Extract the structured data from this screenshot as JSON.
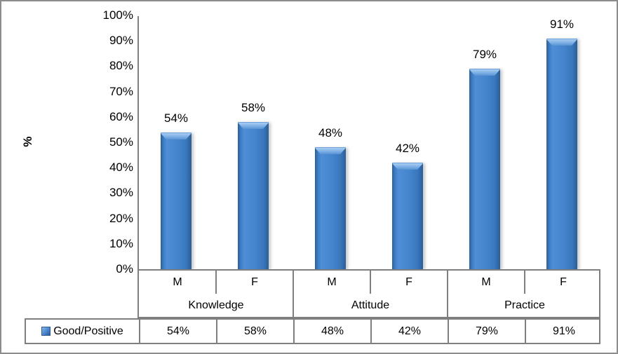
{
  "figure": {
    "background": "#FFFFFF",
    "frame_color": "#8C8C8C"
  },
  "colors": {
    "bar_face": "#4485CD",
    "bar_edge": "#2B5E97",
    "bar_highlight": "#A9CCF1",
    "table_border": "#7F7F7F",
    "axis_line": "#808080",
    "text": "#000000"
  },
  "chart_data": {
    "type": "bar",
    "title": "",
    "xlabel": "",
    "ylabel": "%",
    "ylim": [
      0,
      100
    ],
    "ytick_step": 10,
    "ytick_labels": [
      "0%",
      "10%",
      "20%",
      "30%",
      "40%",
      "50%",
      "60%",
      "70%",
      "80%",
      "90%",
      "100%"
    ],
    "grid": false,
    "legend_position": "bottom-table-left",
    "groups": [
      {
        "label": "Knowledge",
        "categories": [
          "M",
          "F"
        ]
      },
      {
        "label": "Attitude",
        "categories": [
          "M",
          "F"
        ]
      },
      {
        "label": "Practice",
        "categories": [
          "M",
          "F"
        ]
      }
    ],
    "x_categories": [
      "M",
      "F",
      "M",
      "F",
      "M",
      "F"
    ],
    "series": [
      {
        "name": "Good/Positive",
        "values": [
          54,
          58,
          48,
          42,
          79,
          91
        ],
        "data_labels": [
          "54%",
          "58%",
          "48%",
          "42%",
          "79%",
          "91%"
        ],
        "color": "#4485CD"
      }
    ],
    "data_table": {
      "row_header": "Good/Positive",
      "cells": [
        "54%",
        "58%",
        "48%",
        "42%",
        "79%",
        "91%"
      ]
    }
  }
}
